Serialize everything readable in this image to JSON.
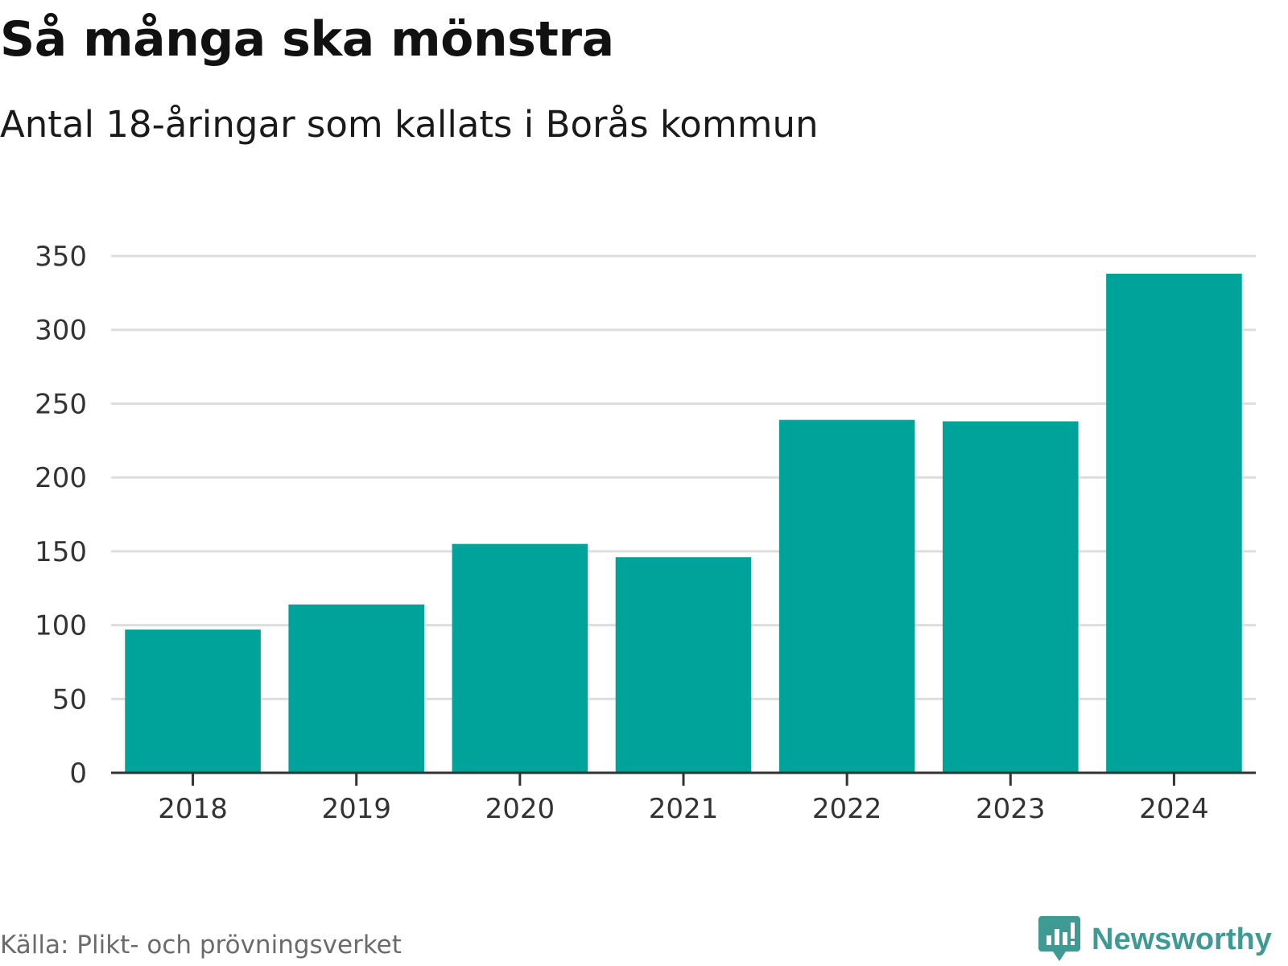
{
  "header": {
    "title": "Så många ska mönstra",
    "subtitle": "Antal 18-åringar som kallats i Borås kommun"
  },
  "chart_data": {
    "type": "bar",
    "title": "Så många ska mönstra",
    "subtitle": "Antal 18-åringar som kallats i Borås kommun",
    "categories": [
      "2018",
      "2019",
      "2020",
      "2021",
      "2022",
      "2023",
      "2024"
    ],
    "values": [
      97,
      114,
      155,
      146,
      239,
      238,
      338
    ],
    "xlabel": "",
    "ylabel": "",
    "ylim": [
      0,
      350
    ],
    "yticks": [
      0,
      50,
      100,
      150,
      200,
      250,
      300,
      350
    ],
    "grid": true,
    "bar_color": "#00a39a",
    "grid_color": "#dddddd",
    "axis_color": "#333333"
  },
  "footer": {
    "source": "Källa: Plikt- och prövningsverket",
    "logo_text": "Newsworthy",
    "logo_icon": "newsworthy-chat-bars-icon",
    "logo_color": "#3f9a94"
  }
}
